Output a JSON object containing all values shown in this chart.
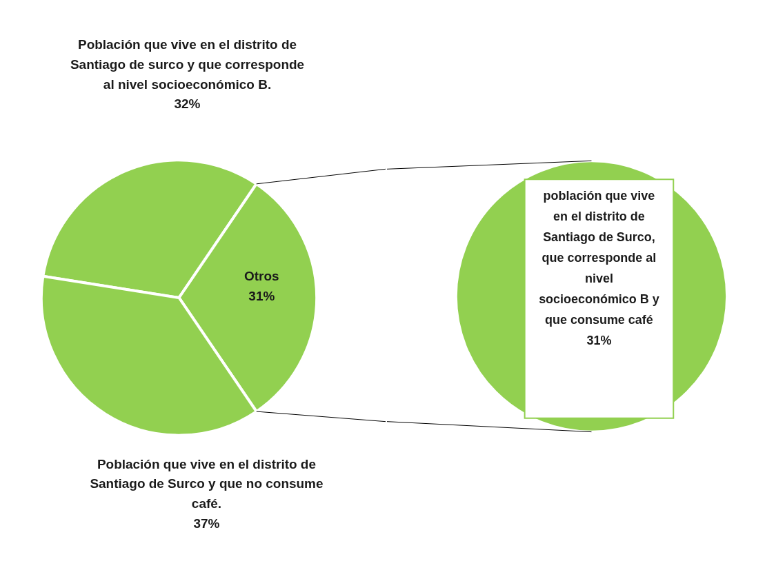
{
  "chart_data": [
    {
      "type": "pie",
      "categories": [
        "Población que vive en el distrito de Santiago de surco y que corresponde al nivel socioeconómico B.",
        "Otros",
        "Población que vive en el distrito de Santiago de Surco y que no consume café."
      ],
      "values": [
        32,
        31,
        37
      ],
      "value_labels": [
        "32%",
        "31%",
        "37%"
      ],
      "colors": [
        "#92d050",
        "#92d050",
        "#92d050"
      ]
    },
    {
      "type": "pie",
      "categories": [
        "población que vive en el distrito de Santiago de Surco, que corresponde al nivel socioeconómico B y que consume café"
      ],
      "values": [
        31
      ],
      "value_labels": [
        "31%"
      ],
      "colors": [
        "#92d050"
      ]
    }
  ]
}
